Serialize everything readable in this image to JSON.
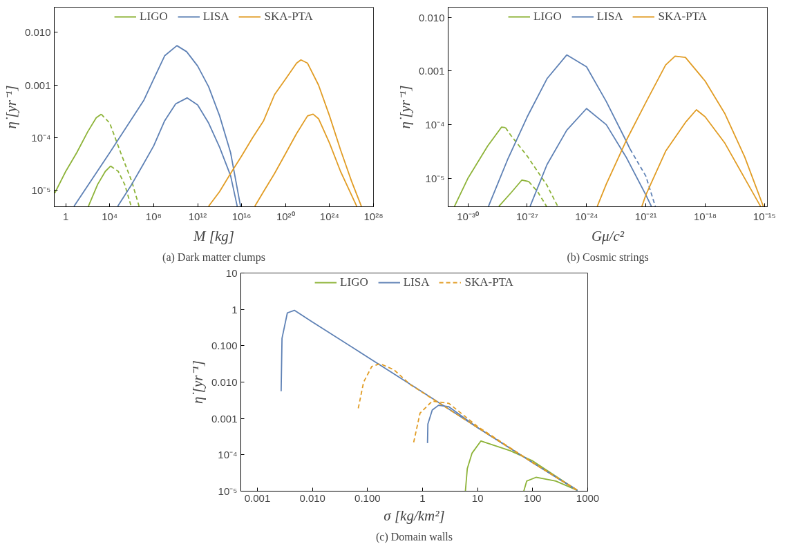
{
  "chart_data": [
    {
      "type": "line",
      "title": "(a) Dark matter clumps",
      "xlabel": "M [kg]",
      "ylabel": "η̇ [yr⁻¹]",
      "log": "xy",
      "legend": "top",
      "xlim": [
        0.09,
        1e+28
      ],
      "ylim": [
        4.9e-06,
        0.03
      ],
      "xticks": [
        1,
        {
          "value": 10000.0,
          "label": "10⁴"
        },
        {
          "value": 100000000.0,
          "label": "10⁸"
        },
        {
          "value": 1000000000000.0,
          "label": "10¹²"
        },
        {
          "value": 1e+16,
          "label": "10¹⁶"
        },
        {
          "value": 1e+20,
          "label": "10²⁰"
        },
        {
          "value": 1e+24,
          "label": "10²⁴"
        },
        {
          "value": 1e+28,
          "label": "10²⁸"
        }
      ],
      "yticks": [
        {
          "value": 1e-05,
          "label": "10⁻⁵"
        },
        {
          "value": 0.0001,
          "label": "10⁻⁴"
        },
        0.001,
        {
          "value": 0.01,
          "label": "0.010"
        }
      ],
      "series": [
        {
          "name": "LIGO",
          "color": "#8db338",
          "x": [
            0.1,
            1,
            10,
            100,
            600,
            1700
          ],
          "values": [
            8.9e-06,
            2.3e-05,
            5.2e-05,
            0.00013,
            0.00024,
            0.00028
          ]
        },
        {
          "color": "#8db338",
          "line_style": "dashed",
          "x": [
            1700,
            10000.0,
            100000.0,
            1000000.0,
            4700000.0
          ],
          "values": [
            0.00028,
            0.00019,
            5.2e-05,
            1.5e-05,
            5e-06
          ]
        },
        {
          "color": "#8db338",
          "x": [
            115,
            800,
            4000,
            12000.0
          ],
          "values": [
            5e-06,
            1.3e-05,
            2.3e-05,
            2.9e-05
          ]
        },
        {
          "color": "#8db338",
          "line_style": "dashed",
          "x": [
            12000.0,
            60000.0,
            230000.0,
            900000.0
          ],
          "values": [
            2.9e-05,
            2.3e-05,
            1.3e-05,
            5e-06
          ]
        },
        {
          "name": "LISA",
          "color": "#5e81b5",
          "x": [
            5.7,
            10000.0,
            13000000.0,
            100000000.0,
            1000000000.0,
            13000000000.0,
            100000000000.0,
            1000000000000.0,
            10000000000000.0,
            100000000000000.0,
            1000000000000000.0,
            8000000000000000.0
          ],
          "values": [
            5e-06,
            5.2e-05,
            0.00052,
            0.0013,
            0.0036,
            0.0056,
            0.0043,
            0.0023,
            0.00093,
            0.00026,
            5.2e-05,
            5e-06
          ]
        },
        {
          "color": "#5e81b5",
          "x": [
            54000.0,
            1000000.0,
            10000000.0,
            100000000.0,
            1000000000.0,
            10000000000.0,
            110000000000.0,
            1000000000000.0,
            10000000000000.0,
            100000000000000.0,
            1000000000000000.0,
            4000000000000000.0
          ],
          "values": [
            5e-06,
            1.3e-05,
            3e-05,
            7e-05,
            0.00021,
            0.00044,
            0.00057,
            0.00042,
            0.00019,
            6.6e-05,
            1.9e-05,
            5e-06
          ]
        },
        {
          "name": "SKA-PTA",
          "color": "#e19c24",
          "x": [
            10000000000000.0,
            100000000000000.0,
            1000000000000000.0,
            1e+16,
            1e+17,
            1e+18,
            1e+19,
            1e+20,
            1e+21,
            2.5e+21,
            1e+22,
            1e+23,
            1e+24,
            1e+25,
            1e+26,
            7.9e+26
          ],
          "values": [
            5e-06,
            9.5e-06,
            2.1e-05,
            4.5e-05,
            0.0001,
            0.00021,
            0.00066,
            0.0013,
            0.0026,
            0.003,
            0.0026,
            0.001,
            0.00026,
            5.9e-05,
            1.5e-05,
            5e-06
          ]
        },
        {
          "color": "#e19c24",
          "x": [
            1.6e+17,
            1e+18,
            1e+19,
            1e+20,
            1e+21,
            1e+22,
            3.2e+22,
            1e+23,
            1e+24,
            1e+25,
            3e+26
          ],
          "values": [
            5e-06,
            9.5e-06,
            2.1e-05,
            5e-05,
            0.00012,
            0.00026,
            0.00028,
            0.00023,
            7.9e-05,
            2.3e-05,
            5e-06
          ]
        }
      ]
    },
    {
      "type": "line",
      "title": "(b) Cosmic strings",
      "xlabel": "Gμ/c²",
      "ylabel": "η̇ [yr⁻¹]",
      "log": "xy",
      "legend": "top",
      "xlim": [
        1e-31,
        1.4e-15
      ],
      "ylim": [
        2.95e-06,
        0.0155
      ],
      "xticks": [
        {
          "value": 1e-30,
          "label": "10⁻³⁰"
        },
        {
          "value": 1e-27,
          "label": "10⁻²⁷"
        },
        {
          "value": 1e-24,
          "label": "10⁻²⁴"
        },
        {
          "value": 1e-21,
          "label": "10⁻²¹"
        },
        {
          "value": 1e-18,
          "label": "10⁻¹⁸"
        },
        {
          "value": 1e-15,
          "label": "10⁻¹⁵"
        }
      ],
      "yticks": [
        {
          "value": 1e-05,
          "label": "10⁻⁵"
        },
        {
          "value": 0.0001,
          "label": "10⁻⁴"
        },
        0.001,
        {
          "value": 0.01,
          "label": "0.010"
        }
      ],
      "series": [
        {
          "name": "LIGO",
          "color": "#8db338",
          "x": [
            2.1e-31,
            1e-30,
            1e-29,
            5e-29,
            8e-29
          ],
          "values": [
            3e-06,
            1e-05,
            4e-05,
            9e-05,
            8.8e-05
          ]
        },
        {
          "color": "#8db338",
          "line_style": "dashed",
          "x": [
            8e-29,
            1.5e-28,
            1e-27,
            1e-26,
            3.5e-26
          ],
          "values": [
            8.8e-05,
            6.3e-05,
            2.6e-05,
            7.4e-06,
            3e-06
          ]
        },
        {
          "color": "#8db338",
          "x": [
            3.7e-29,
            1.6e-28,
            5.4e-28,
            1.2e-27
          ],
          "values": [
            3e-06,
            5.5e-06,
            9.3e-06,
            8.7e-06
          ]
        },
        {
          "color": "#8db338",
          "line_style": "dashed",
          "x": [
            1.2e-27,
            3.5e-27,
            9.5e-27
          ],
          "values": [
            8.7e-06,
            5.5e-06,
            3e-06
          ]
        },
        {
          "name": "LISA",
          "color": "#5e81b5",
          "x": [
            1.1e-29,
            1e-28,
            1e-27,
            1e-26,
            1e-25,
            1e-24,
            1e-23,
            1e-22,
            1.6e-22
          ],
          "values": [
            3e-06,
            2.2e-05,
            0.00014,
            0.00072,
            0.002,
            0.0012,
            0.00027,
            5e-05,
            3.5e-05
          ]
        },
        {
          "color": "#5e81b5",
          "line_style": "dashed",
          "x": [
            1.6e-22,
            1e-21,
            3e-21
          ],
          "values": [
            3.5e-05,
            1.1e-05,
            3e-06
          ]
        },
        {
          "color": "#5e81b5",
          "x": [
            1.4e-27,
            1e-26,
            1e-25,
            1e-24,
            1e-23,
            1e-22,
            1e-21,
            1.9e-21
          ],
          "values": [
            3e-06,
            1.8e-05,
            7.9e-05,
            0.0002,
            0.0001,
            2.5e-05,
            4.9e-06,
            3e-06
          ]
        },
        {
          "name": "SKA-PTA",
          "color": "#e19c24",
          "x": [
            3.5e-24,
            1e-23,
            1e-22,
            1e-21,
            1e-20,
            3e-20,
            1e-19,
            1e-18,
            1e-17,
            1e-16,
            8.7e-16
          ],
          "values": [
            3e-06,
            7.8e-06,
            5e-05,
            0.00026,
            0.0013,
            0.0019,
            0.0018,
            0.00065,
            0.00016,
            2.5e-05,
            3e-06
          ]
        },
        {
          "color": "#e19c24",
          "x": [
            6.3e-22,
            1e-21,
            1e-20,
            1e-19,
            3.6e-19,
            1e-18,
            1e-17,
            1e-16,
            6.3e-16
          ],
          "values": [
            3e-06,
            4.9e-06,
            3.2e-05,
            0.00011,
            0.00019,
            0.00014,
            4.5e-05,
            1e-05,
            3e-06
          ]
        }
      ]
    },
    {
      "type": "line",
      "title": "(c) Domain walls",
      "xlabel": "σ [kg/km²]",
      "ylabel": "η̇ [yr⁻¹]",
      "log": "xy",
      "legend": "top",
      "xlim": [
        0.0005,
        1000
      ],
      "ylim": [
        1e-05,
        10
      ],
      "xticks": [
        0.001,
        {
          "value": 0.01,
          "label": "0.010"
        },
        {
          "value": 0.1,
          "label": "0.100"
        },
        1,
        10,
        100,
        1000
      ],
      "yticks": [
        {
          "value": 1e-05,
          "label": "10⁻⁵"
        },
        {
          "value": 0.0001,
          "label": "10⁻⁴"
        },
        0.001,
        {
          "value": 0.01,
          "label": "0.010"
        },
        {
          "value": 0.1,
          "label": "0.100"
        },
        1,
        10
      ],
      "series": [
        {
          "name": "LIGO",
          "color": "#8db338",
          "x": [
            6,
            6.5,
            7.9,
            11.5,
            39,
            100,
            650
          ],
          "values": [
            1e-05,
            4.2e-05,
            0.00011,
            0.00024,
            0.00013,
            6.8e-05,
            1.05e-05
          ]
        },
        {
          "color": "#8db338",
          "x": [
            69,
            78,
            115,
            263,
            650
          ],
          "values": [
            1e-05,
            1.9e-05,
            2.4e-05,
            1.9e-05,
            1.05e-05
          ]
        },
        {
          "name": "LISA",
          "color": "#5e81b5",
          "x": [
            0.0027,
            0.0028,
            0.0035,
            0.0047,
            0.01,
            0.1,
            1,
            10,
            100,
            650
          ],
          "values": [
            0.0056,
            0.16,
            0.8,
            0.94,
            0.45,
            0.049,
            0.0053,
            0.00056,
            6.1e-05,
            1.05e-05
          ]
        },
        {
          "color": "#5e81b5",
          "x": [
            1.23,
            1.25,
            1.5,
            1.95,
            3,
            10,
            100,
            650
          ],
          "values": [
            0.00021,
            0.0007,
            0.0017,
            0.0023,
            0.0021,
            0.00056,
            6.1e-05,
            1.05e-05
          ]
        },
        {
          "color": "#e19c24",
          "line_style": "dashed",
          "x": [
            0.068,
            0.085,
            0.12,
            0.17,
            0.3,
            0.6,
            10,
            100,
            650
          ],
          "values": [
            0.0019,
            0.01,
            0.027,
            0.032,
            0.022,
            0.0085,
            0.00056,
            6.1e-05,
            1.05e-05
          ]
        },
        {
          "name": "SKA-PTA",
          "color": "#e19c24",
          "line_style": "dashed",
          "x": [
            0.69,
            0.9,
            1.5,
            3,
            10,
            100,
            650
          ],
          "values": [
            0.00022,
            0.0014,
            0.003,
            0.0026,
            0.0006,
            6.1e-05,
            1.05e-05
          ]
        }
      ]
    }
  ]
}
